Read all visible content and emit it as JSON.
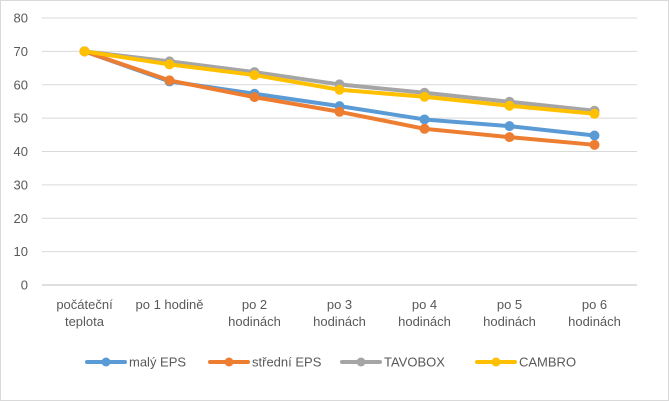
{
  "chart_data": {
    "type": "line",
    "title": "",
    "xlabel": "",
    "ylabel": "",
    "ylim": [
      0,
      80
    ],
    "yticks": [
      0,
      10,
      20,
      30,
      40,
      50,
      60,
      70,
      80
    ],
    "grid": "horizontal",
    "legend_position": "bottom",
    "categories": [
      [
        "počáteční",
        "teplota"
      ],
      [
        "po 1 hodině"
      ],
      [
        "po 2",
        "hodinách"
      ],
      [
        "po 3",
        "hodinách"
      ],
      [
        "po 4",
        "hodinách"
      ],
      [
        "po 5",
        "hodinách"
      ],
      [
        "po 6",
        "hodinách"
      ]
    ],
    "series": [
      {
        "name": "malý EPS",
        "color": "#5B9BD5",
        "values": [
          70,
          61,
          57.3,
          53.6,
          49.6,
          47.6,
          44.8
        ]
      },
      {
        "name": "střední EPS",
        "color": "#ED7D31",
        "values": [
          70,
          61.3,
          56.3,
          51.9,
          46.8,
          44.3,
          42
        ]
      },
      {
        "name": "TAVOBOX",
        "color": "#A5A5A5",
        "values": [
          70,
          67,
          63.8,
          60.1,
          57.6,
          54.9,
          52.2
        ]
      },
      {
        "name": "CAMBRO",
        "color": "#FFC000",
        "values": [
          70,
          66.1,
          62.9,
          58.5,
          56.4,
          53.7,
          51.3
        ]
      }
    ]
  }
}
